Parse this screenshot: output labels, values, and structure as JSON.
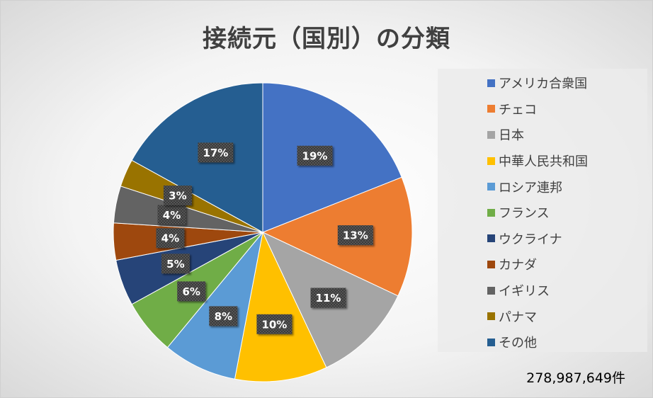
{
  "chart_data": {
    "type": "pie",
    "title": "接続元（国別）の分類",
    "legend_position": "right",
    "slices": [
      {
        "label": "アメリカ合衆国",
        "value": 19,
        "color": "#4472C4"
      },
      {
        "label": "チェコ",
        "value": 13,
        "color": "#ED7D31"
      },
      {
        "label": "日本",
        "value": 11,
        "color": "#A5A5A5"
      },
      {
        "label": "中華人民共和国",
        "value": 10,
        "color": "#FFC000"
      },
      {
        "label": "ロシア連邦",
        "value": 8,
        "color": "#5B9BD5"
      },
      {
        "label": "フランス",
        "value": 6,
        "color": "#70AD47"
      },
      {
        "label": "ウクライナ",
        "value": 5,
        "color": "#264478"
      },
      {
        "label": "カナダ",
        "value": 4,
        "color": "#9E480E"
      },
      {
        "label": "イギリス",
        "value": 4,
        "color": "#636363"
      },
      {
        "label": "パナマ",
        "value": 3,
        "color": "#997300"
      },
      {
        "label": "その他",
        "value": 17,
        "color": "#255E91"
      }
    ],
    "value_suffix": "%",
    "total": "278,987,649件"
  }
}
